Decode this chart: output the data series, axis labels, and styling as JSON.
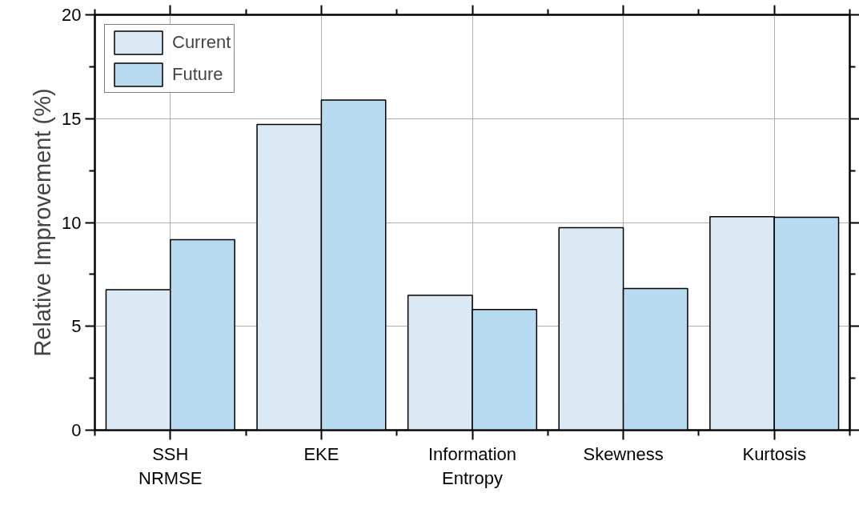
{
  "chart_data": {
    "type": "bar",
    "ylabel": "Relative Improvement (%)",
    "categories": [
      "SSH\nNRMSE",
      "EKE",
      "Information\nEntropy",
      "Skewness",
      "Kurtosis"
    ],
    "series": [
      {
        "name": "Current",
        "color": "#dae9f3",
        "values": [
          6.76,
          14.72,
          6.49,
          9.75,
          10.28
        ]
      },
      {
        "name": "Future",
        "color": "#b9dbf1",
        "values": [
          9.17,
          15.9,
          5.81,
          6.82,
          10.25
        ]
      }
    ],
    "ylim": [
      0,
      20
    ],
    "yticks": [
      0,
      5,
      10,
      15,
      20
    ],
    "grid": true,
    "legend": "top left"
  }
}
